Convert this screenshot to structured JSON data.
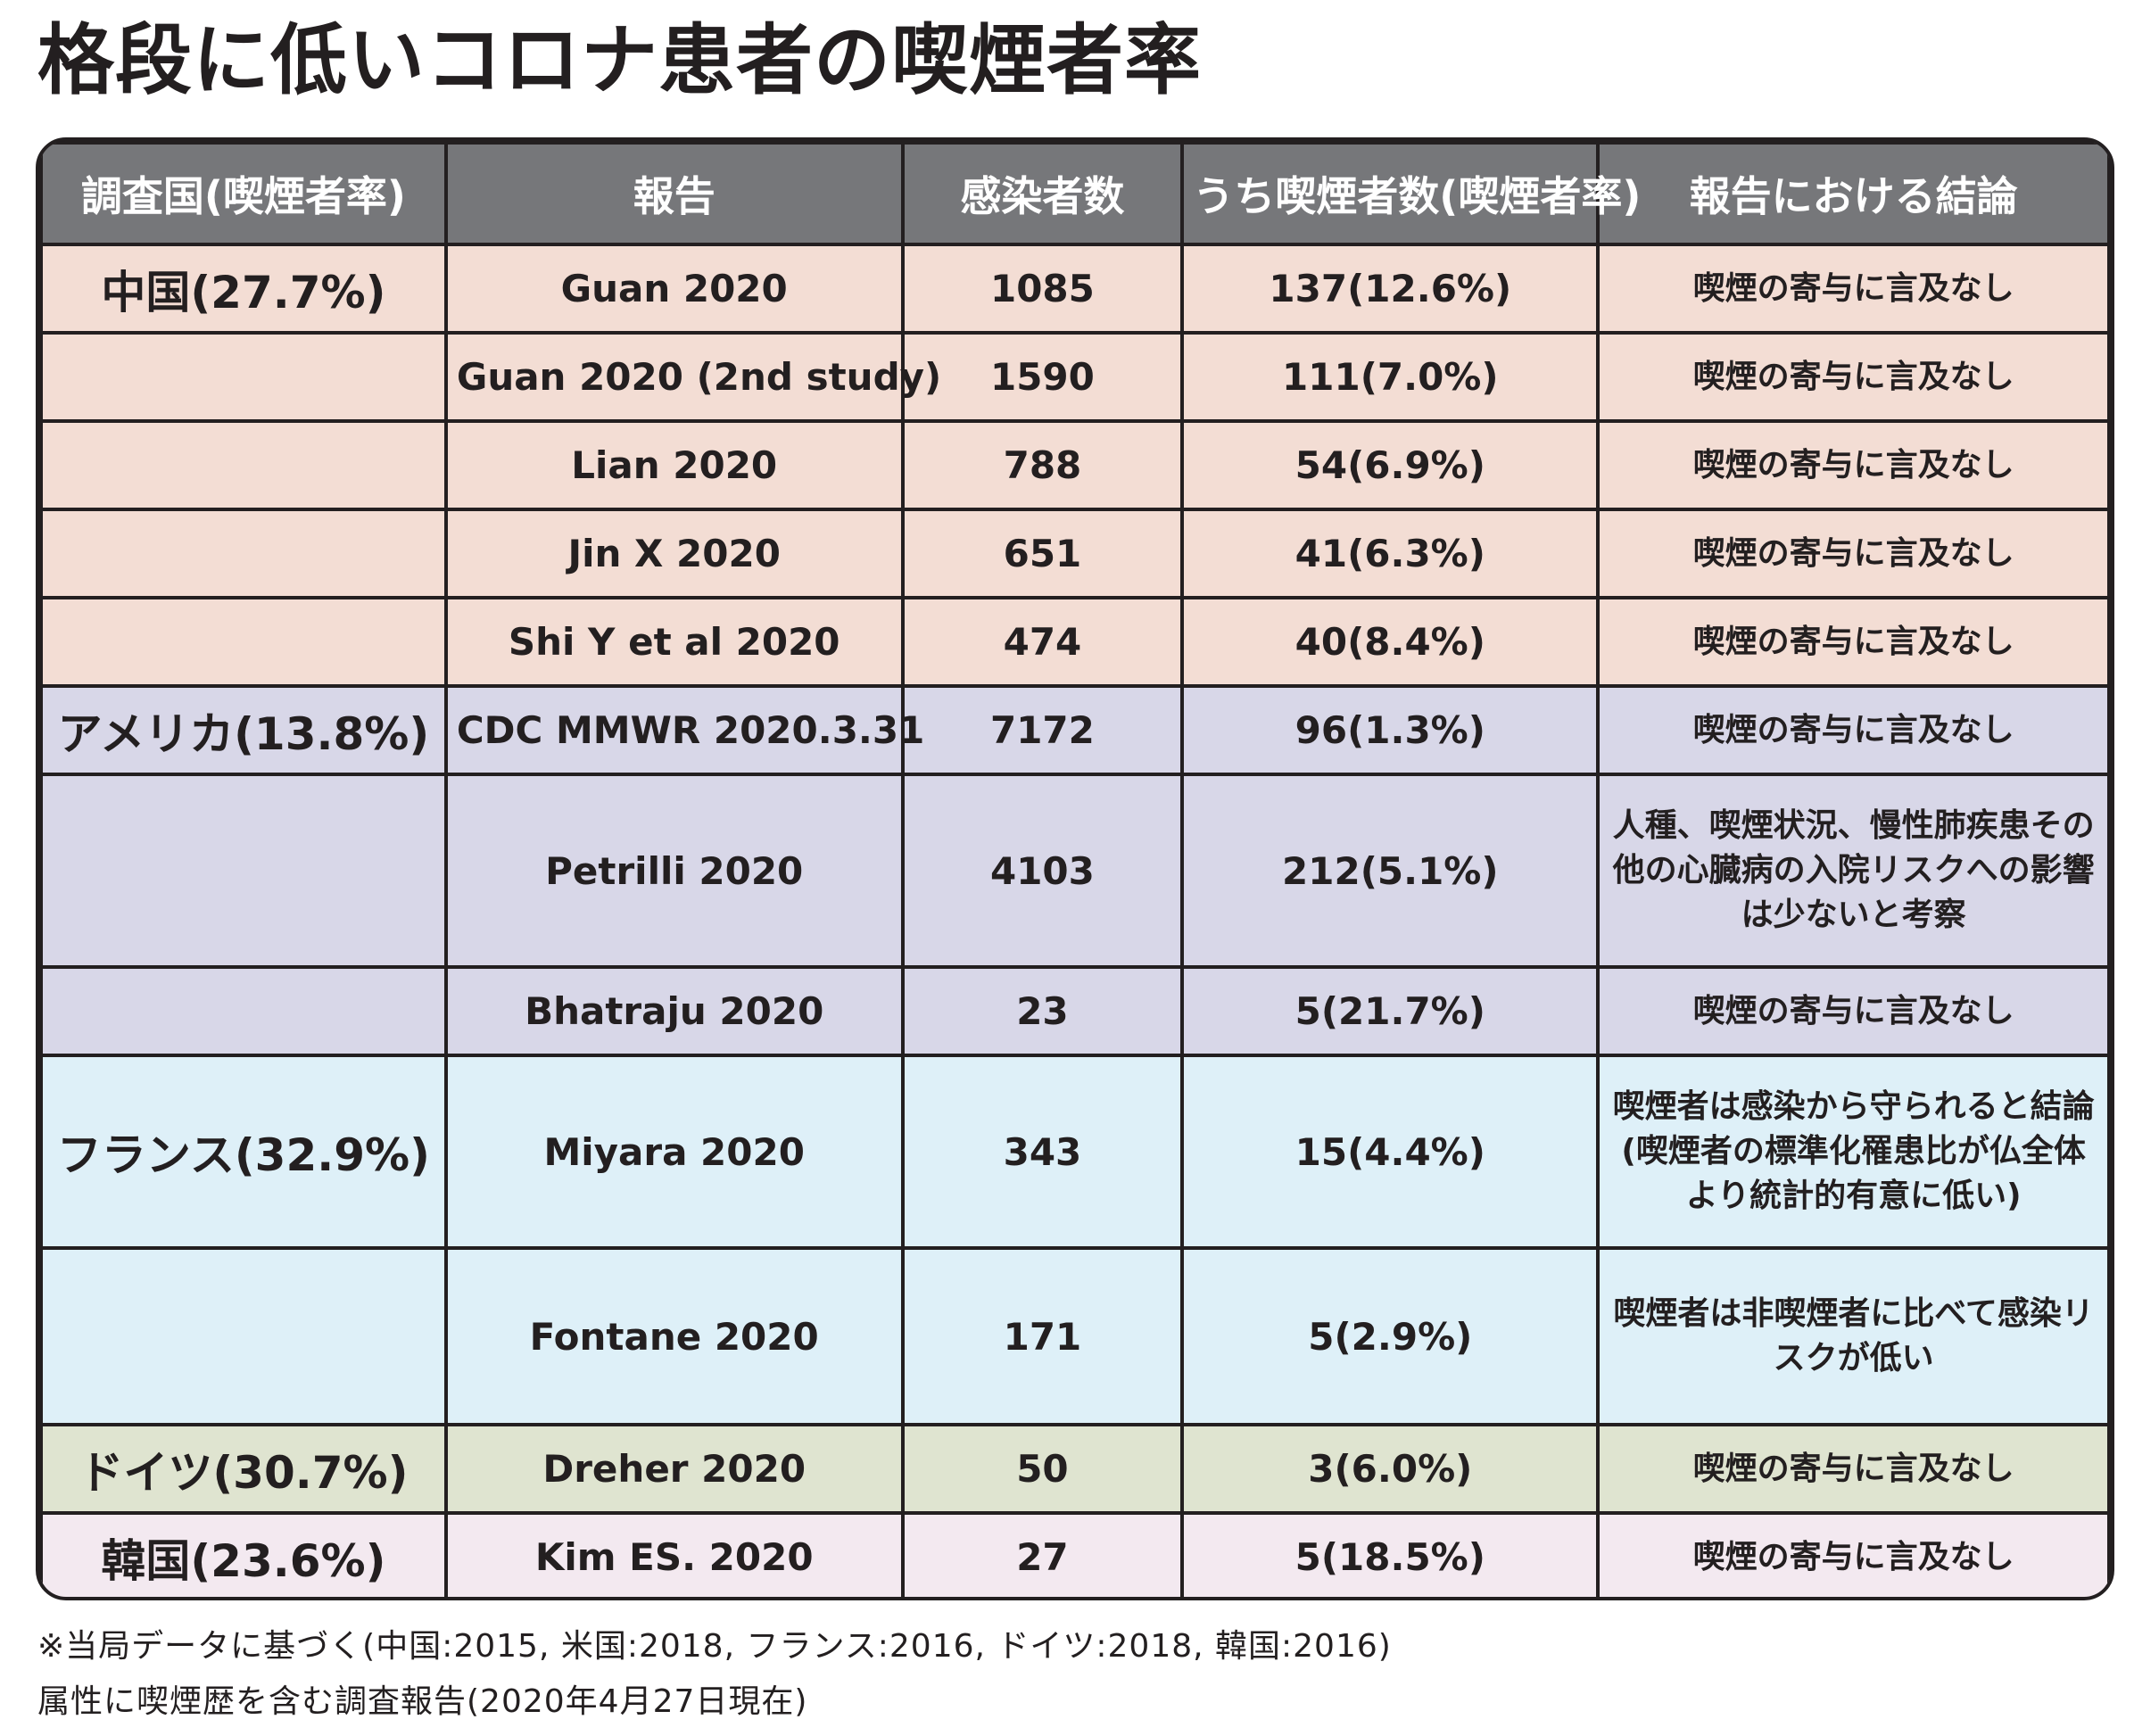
{
  "title": "格段に低いコロナ患者の喫煙者率",
  "table": {
    "headers": [
      "調査国(喫煙者率)",
      "報告",
      "感染者数",
      "うち喫煙者数(喫煙者率)",
      "報告における結論"
    ],
    "rows": [
      {
        "country": "中国(27.7%)",
        "report": "Guan 2020",
        "infected": "1085",
        "smokers": "137(12.6%)",
        "conclusion": "喫煙の寄与に言及なし"
      },
      {
        "country": "",
        "report": "Guan 2020 (2nd study)",
        "infected": "1590",
        "smokers": "111(7.0%)",
        "conclusion": "喫煙の寄与に言及なし"
      },
      {
        "country": "",
        "report": "Lian 2020",
        "infected": "788",
        "smokers": "54(6.9%)",
        "conclusion": "喫煙の寄与に言及なし"
      },
      {
        "country": "",
        "report": "Jin X 2020",
        "infected": "651",
        "smokers": "41(6.3%)",
        "conclusion": "喫煙の寄与に言及なし"
      },
      {
        "country": "",
        "report": "Shi Y et al 2020",
        "infected": "474",
        "smokers": "40(8.4%)",
        "conclusion": "喫煙の寄与に言及なし"
      },
      {
        "country": "アメリカ(13.8%)",
        "report": "CDC MMWR 2020.3.31",
        "infected": "7172",
        "smokers": "96(1.3%)",
        "conclusion": "喫煙の寄与に言及なし"
      },
      {
        "country": "",
        "report": "Petrilli 2020",
        "infected": "4103",
        "smokers": "212(5.1%)",
        "conclusion": "人種、喫煙状況、慢性肺疾患その他の心臓病の入院リスクへの影響は少ないと考察"
      },
      {
        "country": "",
        "report": "Bhatraju 2020",
        "infected": "23",
        "smokers": "5(21.7%)",
        "conclusion": "喫煙の寄与に言及なし"
      },
      {
        "country": "フランス(32.9%)",
        "report": "Miyara 2020",
        "infected": "343",
        "smokers": "15(4.4%)",
        "conclusion": "喫煙者は感染から守られると結論(喫煙者の標準化罹患比が仏全体より統計的有意に低い)"
      },
      {
        "country": "",
        "report": "Fontane 2020",
        "infected": "171",
        "smokers": "5(2.9%)",
        "conclusion": "喫煙者は非喫煙者に比べて感染リスクが低い"
      },
      {
        "country": "ドイツ(30.7%)",
        "report": "Dreher 2020",
        "infected": "50",
        "smokers": "3(6.0%)",
        "conclusion": "喫煙の寄与に言及なし"
      },
      {
        "country": "韓国(23.6%)",
        "report": "Kim ES. 2020",
        "infected": "27",
        "smokers": "5(18.5%)",
        "conclusion": "喫煙の寄与に言及なし"
      }
    ]
  },
  "colors": {
    "header": "#76777a",
    "china": "#f3ddd4",
    "usa": "#d8d7e8",
    "france": "#def0f8",
    "germany": "#dfe4d0",
    "korea": "#f3e9f0"
  },
  "footnotes": [
    "※当局データに基づく(中国:2015, 米国:2018, フランス:2016, ドイツ:2018, 韓国:2016)",
    "属性に喫煙歴を含む調査報告(2020年4月27日現在)"
  ]
}
